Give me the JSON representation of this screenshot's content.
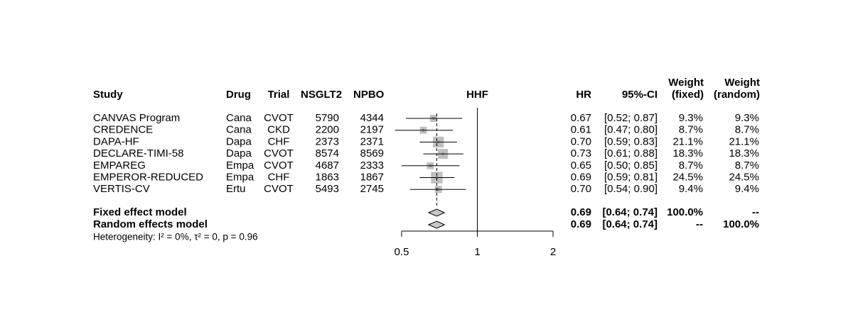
{
  "chart_data": {
    "type": "forest",
    "title": "HHF",
    "headers": {
      "study": "Study",
      "drug": "Drug",
      "trial": "Trial",
      "n_sglt2": "NSGLT2",
      "n_pbo": "NPBO",
      "hr": "HR",
      "ci": "95%-CI",
      "weight_fixed": [
        "Weight",
        "(fixed)"
      ],
      "weight_random": [
        "Weight",
        "(random)"
      ]
    },
    "studies": {
      "names": [
        "CANVAS Program",
        "CREDENCE",
        "DAPA-HF",
        "DECLARE-TIMI-58",
        "EMPAREG",
        "EMPEROR-REDUCED",
        "VERTIS-CV"
      ],
      "drug": [
        "Cana",
        "Cana",
        "Dapa",
        "Dapa",
        "Empa",
        "Empa",
        "Ertu"
      ],
      "trial": [
        "CVOT",
        "CKD",
        "CHF",
        "CVOT",
        "CVOT",
        "CHF",
        "CVOT"
      ],
      "n_sglt2": [
        5790,
        2200,
        2373,
        8574,
        4687,
        1863,
        5493
      ],
      "n_pbo": [
        4344,
        2197,
        2371,
        8569,
        2333,
        1867,
        2745
      ],
      "hr": [
        0.67,
        0.61,
        0.7,
        0.73,
        0.65,
        0.69,
        0.7
      ],
      "hr_labels": [
        "0.67",
        "0.61",
        "0.70",
        "0.73",
        "0.65",
        "0.69",
        "0.70"
      ],
      "ci_lower": [
        0.52,
        0.47,
        0.59,
        0.61,
        0.5,
        0.59,
        0.54
      ],
      "ci_upper": [
        0.87,
        0.8,
        0.83,
        0.88,
        0.85,
        0.81,
        0.9
      ],
      "ci_labels": [
        "[0.52; 0.87]",
        "[0.47; 0.80]",
        "[0.59; 0.83]",
        "[0.61; 0.88]",
        "[0.50; 0.85]",
        "[0.59; 0.81]",
        "[0.54; 0.90]"
      ],
      "weight_fixed": [
        9.3,
        8.7,
        21.1,
        18.3,
        8.7,
        24.5,
        9.4
      ],
      "weight_fixed_labels": [
        "9.3%",
        "8.7%",
        "21.1%",
        "18.3%",
        "8.7%",
        "24.5%",
        "9.4%"
      ],
      "weight_random": [
        9.3,
        8.7,
        21.1,
        18.3,
        8.7,
        24.5,
        9.4
      ],
      "weight_random_labels": [
        "9.3%",
        "8.7%",
        "21.1%",
        "18.3%",
        "8.7%",
        "24.5%",
        "9.4%"
      ]
    },
    "models": [
      {
        "name": "Fixed effect model",
        "hr": 0.69,
        "hr_label": "0.69",
        "ci_lower": 0.64,
        "ci_upper": 0.74,
        "ci_label": "[0.64; 0.74]",
        "weight_fixed": 100,
        "weight_fixed_label": "100.0%",
        "weight_random_label": "--"
      },
      {
        "name": "Random effects model",
        "hr": 0.69,
        "hr_label": "0.69",
        "ci_lower": 0.64,
        "ci_upper": 0.74,
        "ci_label": "[0.64; 0.74]",
        "weight_fixed_label": "--",
        "weight_random": 100,
        "weight_random_label": "100.0%"
      }
    ],
    "heterogeneity": "Heterogeneity: I² = 0%, τ² = 0, p = 0.96",
    "log_scale": true,
    "xlim": [
      0.5,
      2
    ],
    "xticks": [
      0.5,
      1,
      2
    ],
    "ref_line": 1,
    "square_color": "#bfbfbf",
    "diamond_color": "#c8c8c8"
  }
}
